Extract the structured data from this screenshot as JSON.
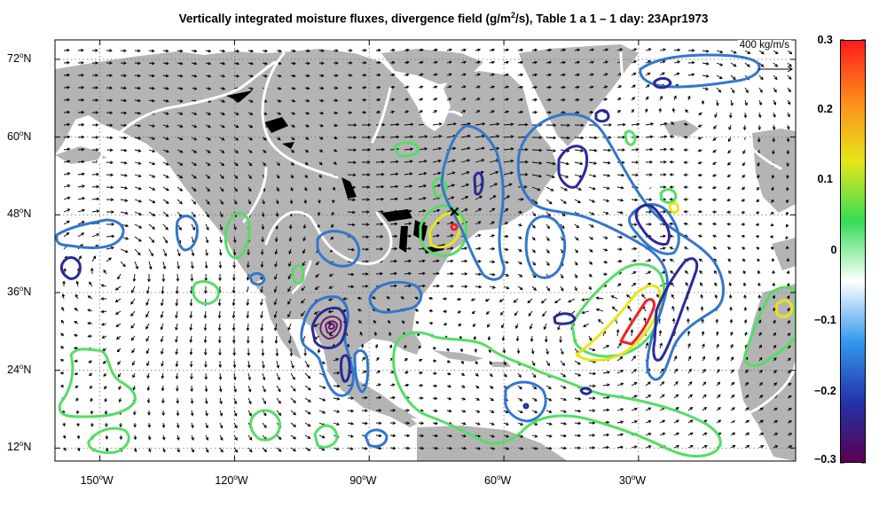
{
  "title": {
    "prefix": "Vertically integrated moisture fluxes, divergence field (g/m",
    "exp": "2",
    "suffix": "/s), Table 1 a 1 – 1 day: 23Apr1973"
  },
  "reference_vector": {
    "label": "400  kg/m/s",
    "magnitude": 400
  },
  "map": {
    "lon_range": [
      -160,
      5
    ],
    "lat_range": [
      10,
      75
    ],
    "land_color": "#b4b4b4",
    "ocean_color": "#ffffff",
    "grid": "dotted"
  },
  "y_ticks": [
    {
      "deg": "72",
      "sup": "o",
      "hem": "N",
      "lat": 72
    },
    {
      "deg": "60",
      "sup": "o",
      "hem": "N",
      "lat": 60
    },
    {
      "deg": "48",
      "sup": "o",
      "hem": "N",
      "lat": 48
    },
    {
      "deg": "36",
      "sup": "o",
      "hem": "N",
      "lat": 36
    },
    {
      "deg": "24",
      "sup": "o",
      "hem": "N",
      "lat": 24
    },
    {
      "deg": "12",
      "sup": "o",
      "hem": "N",
      "lat": 12
    }
  ],
  "x_ticks": [
    {
      "deg": "150",
      "sup": "o",
      "hem": "W",
      "lon": -150
    },
    {
      "deg": "120",
      "sup": "o",
      "hem": "W",
      "lon": -120
    },
    {
      "deg": "90",
      "sup": "o",
      "hem": "W",
      "lon": -90
    },
    {
      "deg": "60",
      "sup": "o",
      "hem": "W",
      "lon": -60
    },
    {
      "deg": "30",
      "sup": "o",
      "hem": "W",
      "lon": -30
    }
  ],
  "colorbar": {
    "range": [
      -0.3,
      0.3
    ],
    "labels": [
      "0.3",
      "0.2",
      "0.1",
      "0",
      "−0.1",
      "−0.2",
      "−0.3"
    ],
    "colors": [
      "#ff1a1a",
      "#ff8c1a",
      "#e6e619",
      "#33dd55",
      "#ffffff",
      "#3399ee",
      "#2233aa",
      "#5a0050"
    ]
  },
  "marker": {
    "symbol": "×",
    "lon": -71,
    "lat": 48.5
  }
}
